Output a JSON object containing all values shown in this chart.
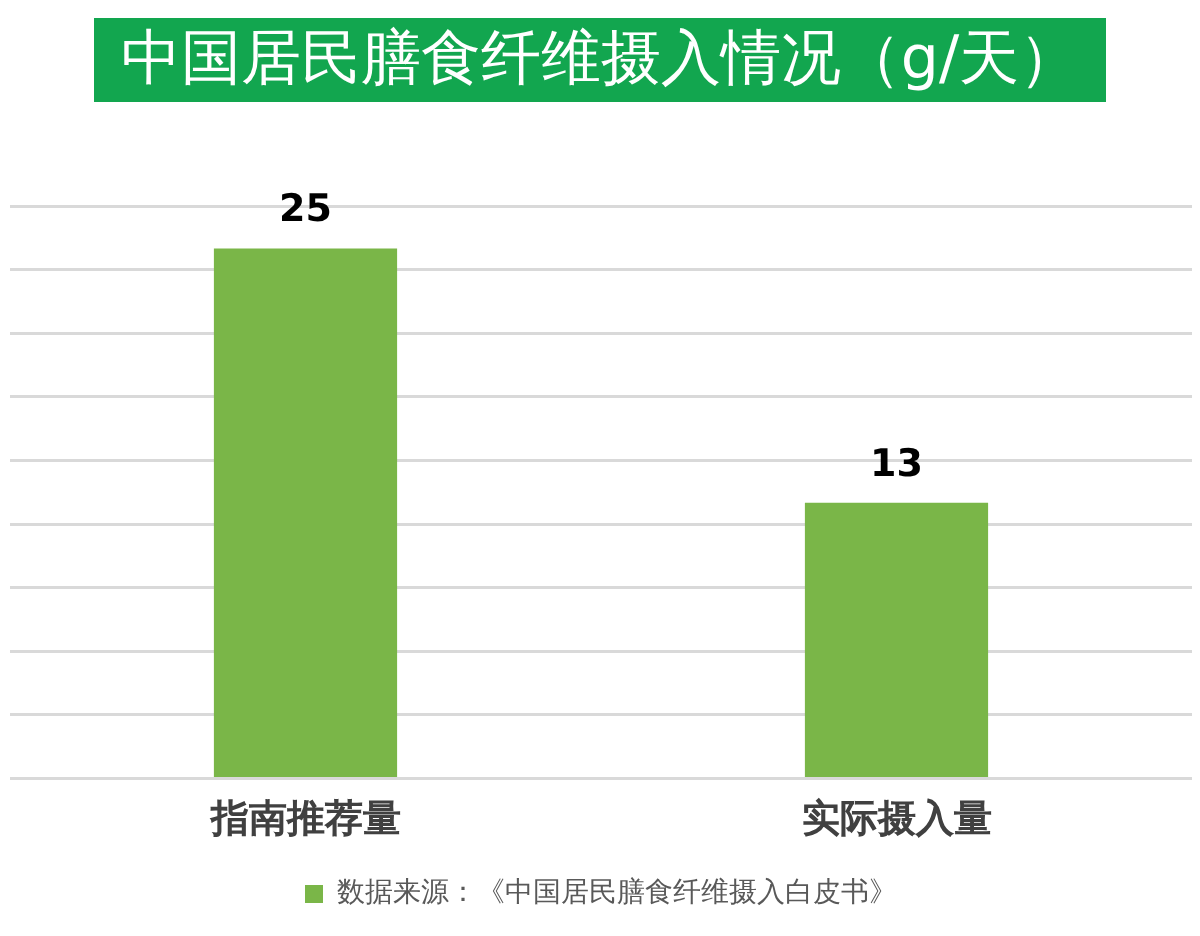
{
  "chart_data": {
    "type": "bar",
    "title": "中国居民膳食纤维摄入情况（g/天）",
    "categories": [
      "指南推荐量",
      "实际摄入量"
    ],
    "series": [
      {
        "name": "数据来源：《中国居民膳食纤维摄入白皮书》",
        "color": "#7ab648",
        "values": [
          25,
          13
        ]
      }
    ],
    "ylim": [
      0,
      27
    ],
    "yticks": [
      {
        "value": 0,
        "label": null
      },
      {
        "value": 3,
        "label": null
      },
      {
        "value": 6,
        "label": null
      },
      {
        "value": 9,
        "label": null
      },
      {
        "value": 12,
        "label": null
      },
      {
        "value": 15,
        "label": null
      },
      {
        "value": 18,
        "label": null
      },
      {
        "value": 21,
        "label": null
      },
      {
        "value": 24,
        "label": null
      },
      {
        "value": 27,
        "label": null
      }
    ],
    "grid": "y",
    "legend": "bottom",
    "tick_labels": "x",
    "data_labels": true
  }
}
